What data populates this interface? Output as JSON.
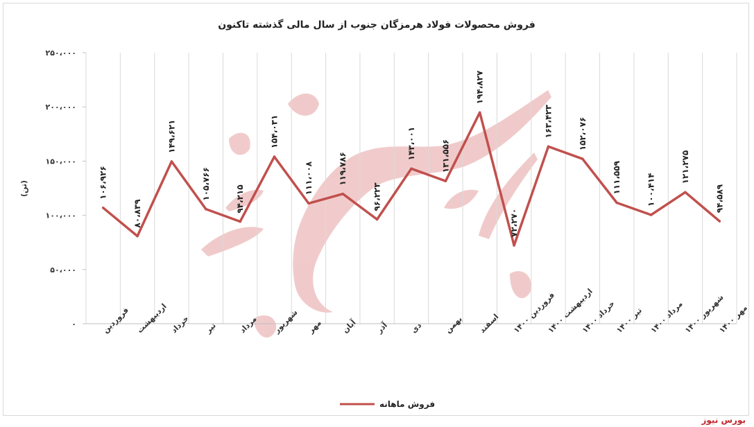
{
  "chart_data": {
    "type": "line",
    "title": "فروش محصولات فولاد هرمزگان جنوب از سال مالی گذشته تاکنون",
    "ylabel": "(تن)",
    "xlabel": "",
    "ylim": [
      0,
      250000
    ],
    "yticks": [
      "۰",
      "۵۰،۰۰۰",
      "۱۰۰،۰۰۰",
      "۱۵۰،۰۰۰",
      "۲۰۰،۰۰۰",
      "۲۵۰،۰۰۰"
    ],
    "ytick_values": [
      0,
      50000,
      100000,
      150000,
      200000,
      250000
    ],
    "grid": "vertical",
    "legend": "bottom",
    "categories": [
      "فروردین",
      "اردیبهشت",
      "خرداد",
      "تیر",
      "مرداد",
      "شهریور",
      "مهر",
      "آبان",
      "آذر",
      "دی",
      "بهمن",
      "اسفند",
      "فروردین ۱۴۰۰",
      "اردیبهشت ۱۴۰۰",
      "خرداد ۱۴۰۰",
      "تیر ۱۴۰۰",
      "مرداد ۱۴۰۰",
      "شهریور ۱۴۰۰",
      "مهر ۱۴۰۰"
    ],
    "series": [
      {
        "name": "فروش ماهانه",
        "color": "#c0504d",
        "values": [
          106926,
          80839,
          149621,
          105766,
          94215,
          154031,
          111008,
          119786,
          96223,
          143001,
          131556,
          194827,
          72270,
          163423,
          152076,
          111559,
          100414,
          121275,
          94589
        ],
        "labels": [
          "۱۰۶،۹۲۶",
          "۸۰،۸۳۹",
          "۱۴۹،۶۲۱",
          "۱۰۵،۷۶۶",
          "۹۴،۲۱۵",
          "۱۵۴،۰۳۱",
          "۱۱۱،۰۰۸",
          "۱۱۹،۷۸۶",
          "۹۶،۲۲۳",
          "۱۴۳،۰۰۱",
          "۱۳۱،۵۵۶",
          "۱۹۴،۸۲۷",
          "۷۲،۲۷۰",
          "۱۶۳،۴۲۳",
          "۱۵۲،۰۷۶",
          "۱۱۱،۵۵۹",
          "۱۰۰،۴۱۴",
          "۱۲۱،۲۷۵",
          "۹۴،۵۸۹"
        ]
      }
    ]
  },
  "source": "بورس نیوز",
  "watermark": "بورس نیوز"
}
